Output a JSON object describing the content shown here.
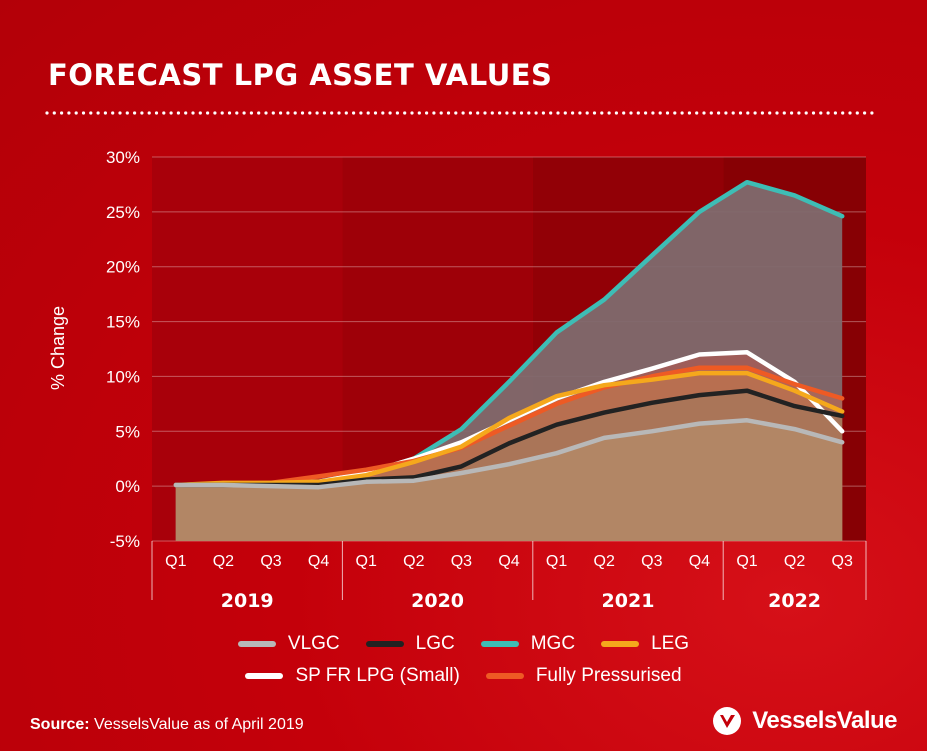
{
  "title": "FORECAST LPG ASSET VALUES",
  "source": {
    "label": "Source:",
    "text": " VesselsValue as of April 2019"
  },
  "logo": {
    "text": "VesselsValue",
    "icon": "vesselsvalue-logo-icon"
  },
  "colors": {
    "VLGC": "#b8b8b8",
    "LGC": "#222222",
    "MGC": "#3ebdb5",
    "LEG": "#f5a81c",
    "SP FR LPG (Small)": "#ffffff",
    "Fully Pressurised": "#ee5a24"
  },
  "chart_data": {
    "type": "area",
    "ylabel": "% Change",
    "xlabel": "",
    "ylim": [
      -5,
      30
    ],
    "yticks": [
      "-5%",
      "0%",
      "5%",
      "10%",
      "15%",
      "20%",
      "25%",
      "30%"
    ],
    "grid": true,
    "legend_position": "bottom",
    "categories": [
      "Q1",
      "Q2",
      "Q3",
      "Q4",
      "Q1",
      "Q2",
      "Q3",
      "Q4",
      "Q1",
      "Q2",
      "Q3",
      "Q4",
      "Q1",
      "Q2",
      "Q3"
    ],
    "years": [
      {
        "label": "2019",
        "quarters": 4
      },
      {
        "label": "2020",
        "quarters": 4
      },
      {
        "label": "2021",
        "quarters": 4
      },
      {
        "label": "2022",
        "quarters": 3
      }
    ],
    "series": [
      {
        "name": "MGC",
        "values": [
          0.1,
          0.2,
          0.2,
          0.4,
          1.2,
          2.5,
          5.2,
          9.5,
          14.0,
          17.0,
          21.0,
          25.0,
          27.7,
          26.5,
          24.6
        ]
      },
      {
        "name": "SP FR LPG (Small)",
        "values": [
          0.1,
          0.2,
          0.2,
          0.4,
          1.2,
          2.5,
          4.0,
          6.0,
          8.0,
          9.5,
          10.7,
          12.0,
          12.2,
          9.5,
          5.0
        ]
      },
      {
        "name": "Fully Pressurised",
        "values": [
          0.1,
          0.2,
          0.3,
          0.9,
          1.5,
          2.3,
          3.5,
          5.5,
          7.5,
          9.0,
          10.0,
          10.8,
          10.8,
          9.3,
          8.0
        ]
      },
      {
        "name": "LEG",
        "values": [
          0.1,
          0.3,
          0.3,
          0.4,
          1.0,
          2.2,
          3.6,
          6.2,
          8.2,
          9.2,
          9.7,
          10.3,
          10.3,
          8.7,
          6.8
        ]
      },
      {
        "name": "LGC",
        "values": [
          0.1,
          0.1,
          0.1,
          0.1,
          0.6,
          0.8,
          1.8,
          3.9,
          5.6,
          6.7,
          7.6,
          8.3,
          8.7,
          7.3,
          6.4
        ]
      },
      {
        "name": "VLGC",
        "values": [
          0.1,
          0.1,
          0.0,
          -0.1,
          0.4,
          0.5,
          1.2,
          2.0,
          3.0,
          4.4,
          5.0,
          5.7,
          6.0,
          5.2,
          4.0
        ]
      }
    ],
    "legend_rows": [
      [
        "VLGC",
        "LGC",
        "MGC",
        "LEG"
      ],
      [
        "SP FR LPG (Small)",
        "Fully Pressurised"
      ]
    ]
  }
}
